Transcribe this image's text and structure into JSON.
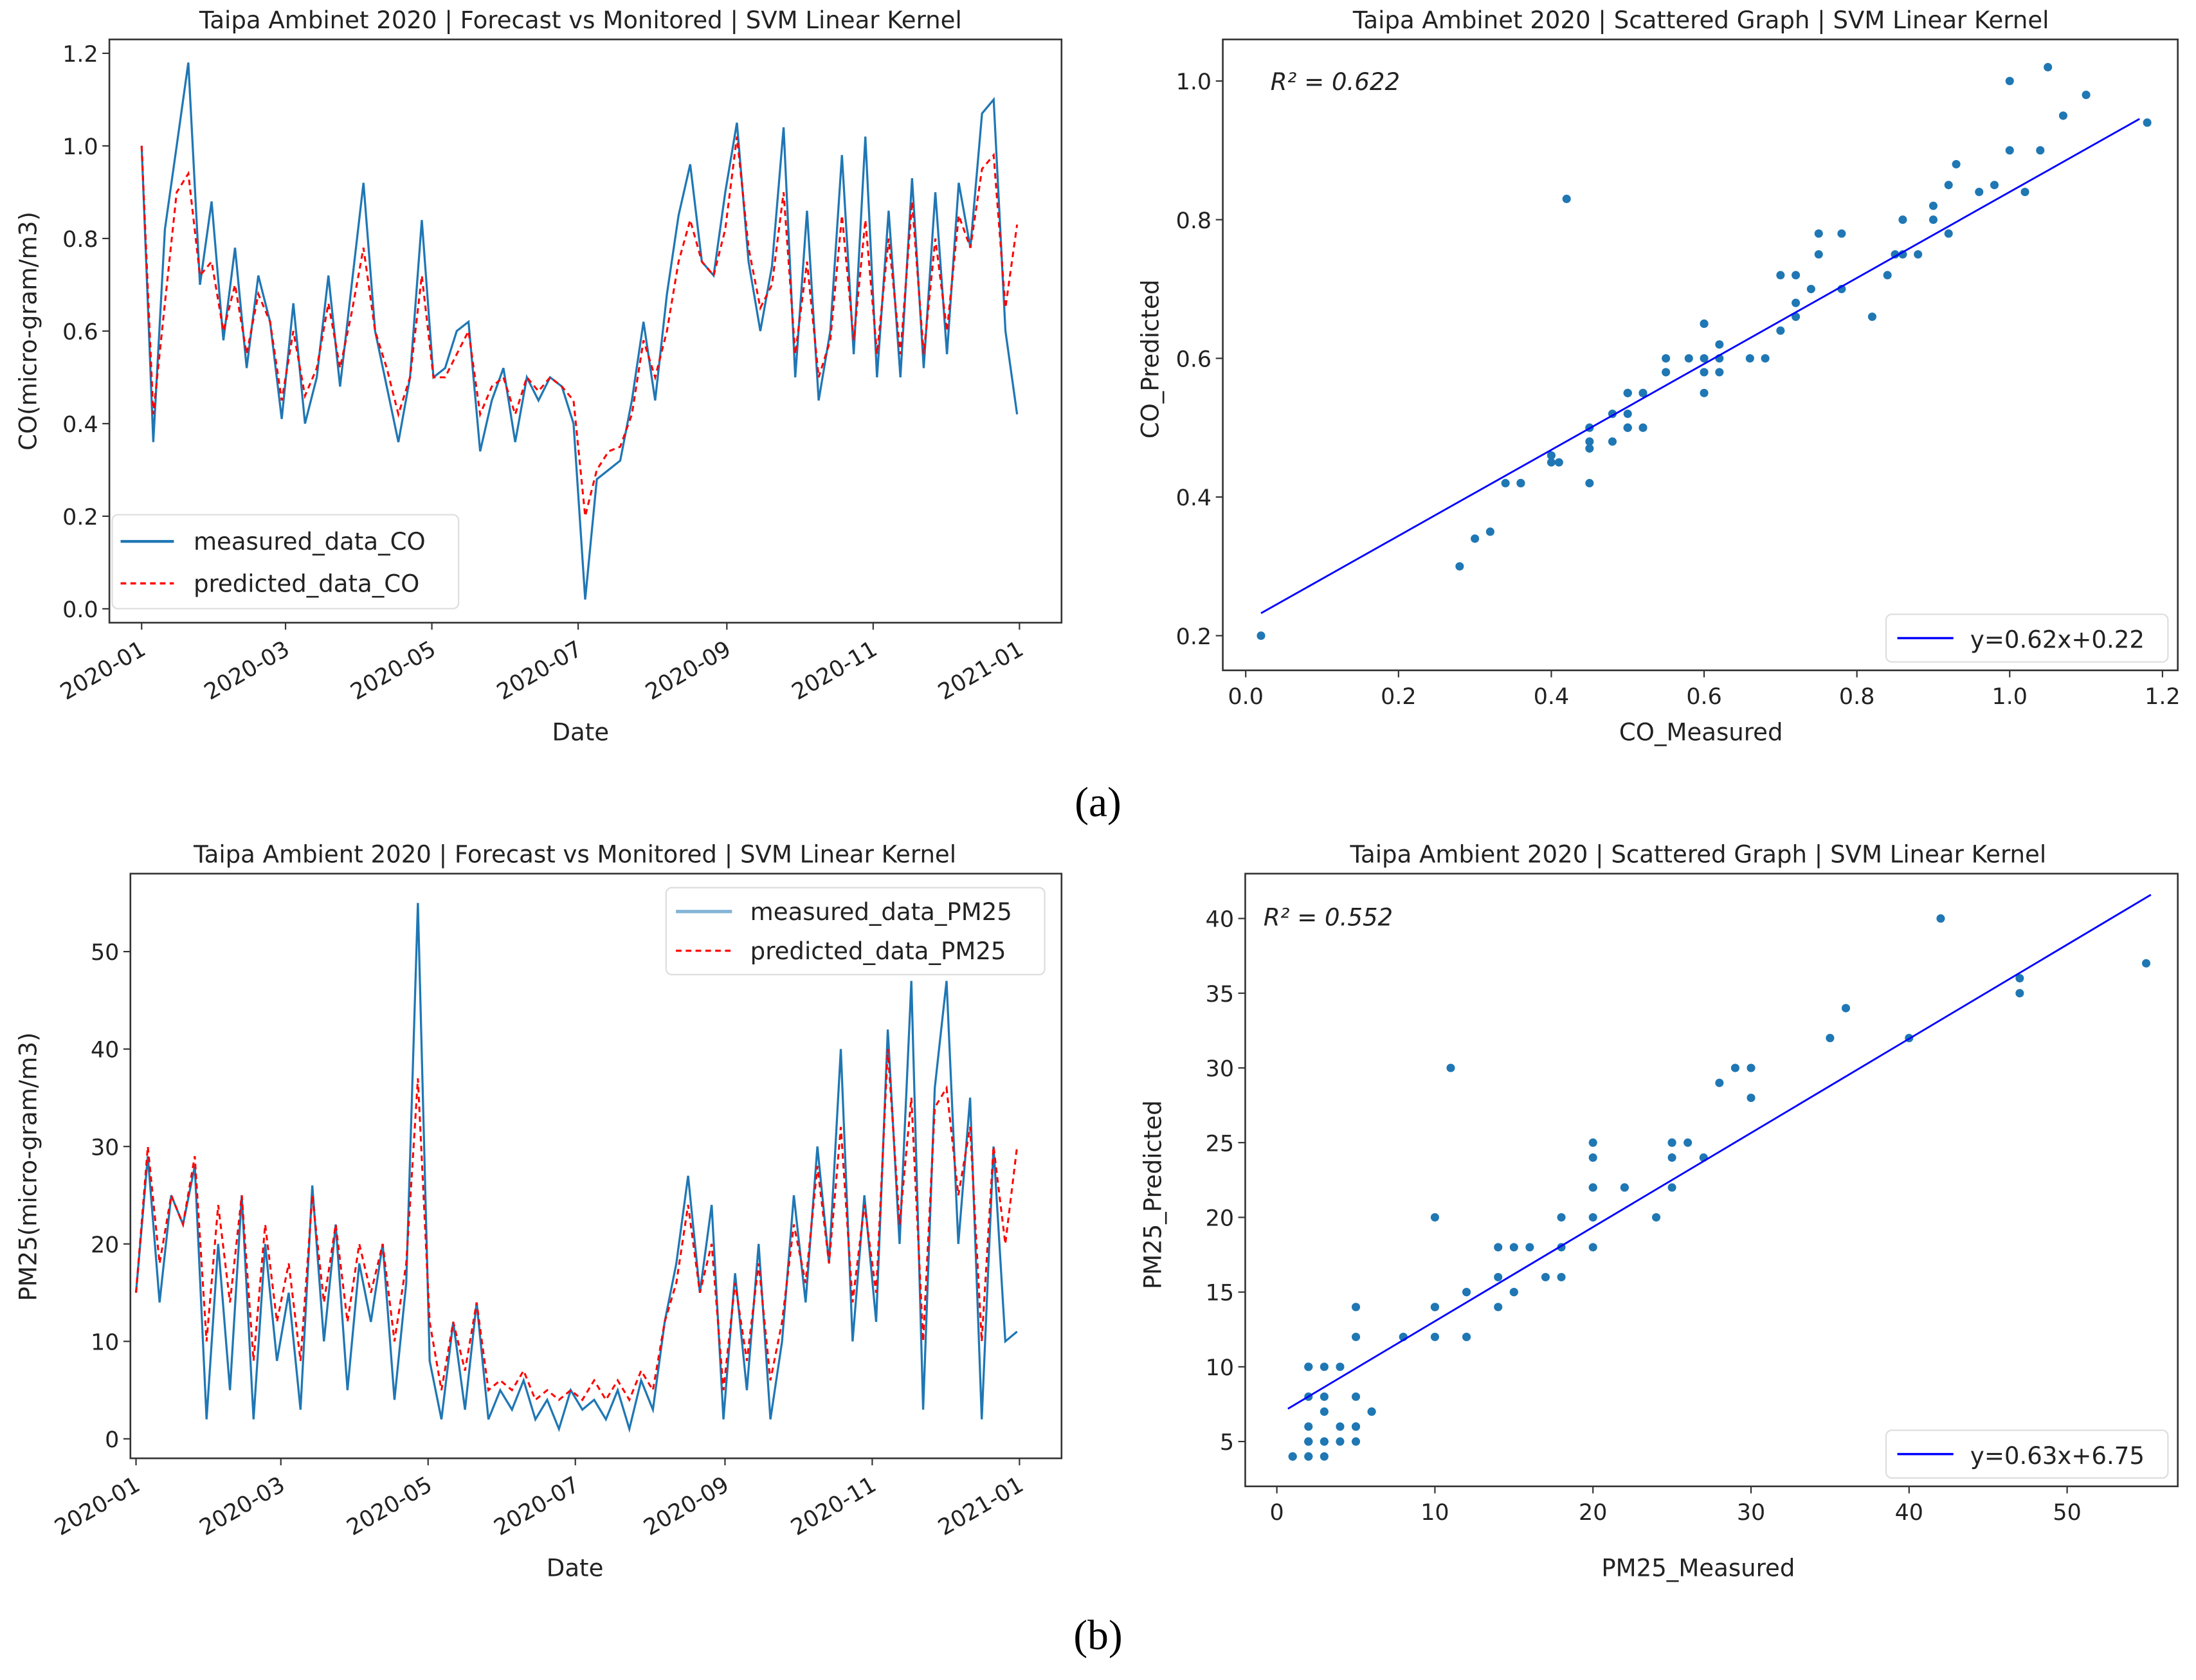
{
  "panel_labels": {
    "a": "(a)",
    "b": "(b)"
  },
  "chart_data": [
    {
      "id": "co_timeseries",
      "type": "line",
      "title": "Taipa Ambinet 2020 | Forecast vs Monitored | SVM Linear Kernel",
      "xlabel": "Date",
      "ylabel": "CO(micro-gram/m3)",
      "start": "2020-01-01",
      "end": "2020-12-31",
      "ylim": [
        -0.03,
        1.23
      ],
      "yticks": [
        0.0,
        0.2,
        0.4,
        0.6,
        0.8,
        1.0,
        1.2
      ],
      "ytick_labels": [
        "0.0",
        "0.2",
        "0.4",
        "0.6",
        "0.8",
        "1.0",
        "1.2"
      ],
      "xtick_labels": [
        "2020-01",
        "2020-03",
        "2020-05",
        "2020-07",
        "2020-09",
        "2020-11",
        "2021-01"
      ],
      "legend": "lower-left",
      "series": [
        {
          "name": "measured_data_CO",
          "color": "#1f77b4",
          "style": "solid",
          "values": [
            1.0,
            0.36,
            0.82,
            1.0,
            1.18,
            0.7,
            0.88,
            0.58,
            0.78,
            0.52,
            0.72,
            0.62,
            0.41,
            0.66,
            0.4,
            0.5,
            0.72,
            0.48,
            0.7,
            0.92,
            0.6,
            0.48,
            0.36,
            0.5,
            0.84,
            0.5,
            0.52,
            0.6,
            0.62,
            0.34,
            0.45,
            0.52,
            0.36,
            0.5,
            0.45,
            0.5,
            0.48,
            0.4,
            0.02,
            0.28,
            0.3,
            0.32,
            0.45,
            0.62,
            0.45,
            0.68,
            0.85,
            0.96,
            0.75,
            0.72,
            0.9,
            1.05,
            0.75,
            0.6,
            0.74,
            1.04,
            0.5,
            0.86,
            0.45,
            0.6,
            0.98,
            0.55,
            1.02,
            0.5,
            0.86,
            0.5,
            0.93,
            0.52,
            0.9,
            0.55,
            0.92,
            0.78,
            1.07,
            1.1,
            0.6,
            0.42
          ]
        },
        {
          "name": "predicted_data_CO",
          "color": "#ff0000",
          "style": "dashed",
          "values": [
            1.0,
            0.42,
            0.66,
            0.9,
            0.94,
            0.72,
            0.75,
            0.6,
            0.7,
            0.55,
            0.68,
            0.62,
            0.45,
            0.6,
            0.46,
            0.52,
            0.66,
            0.52,
            0.64,
            0.78,
            0.6,
            0.52,
            0.42,
            0.5,
            0.72,
            0.5,
            0.5,
            0.55,
            0.6,
            0.42,
            0.48,
            0.5,
            0.42,
            0.5,
            0.47,
            0.5,
            0.48,
            0.45,
            0.2,
            0.3,
            0.34,
            0.35,
            0.42,
            0.58,
            0.5,
            0.6,
            0.75,
            0.84,
            0.75,
            0.72,
            0.82,
            1.02,
            0.78,
            0.65,
            0.7,
            0.9,
            0.55,
            0.75,
            0.5,
            0.58,
            0.85,
            0.58,
            0.84,
            0.55,
            0.8,
            0.55,
            0.88,
            0.55,
            0.8,
            0.6,
            0.85,
            0.78,
            0.95,
            0.98,
            0.65,
            0.83
          ]
        }
      ]
    },
    {
      "id": "co_scatter",
      "type": "scatter",
      "title": "Taipa Ambinet 2020 | Scattered Graph | SVM Linear Kernel",
      "xlabel": "CO_Measured",
      "ylabel": "CO_Predicted",
      "xlim": [
        -0.03,
        1.22
      ],
      "ylim": [
        0.15,
        1.06
      ],
      "xticks": [
        0.0,
        0.2,
        0.4,
        0.6,
        0.8,
        1.0,
        1.2
      ],
      "xtick_labels": [
        "0.0",
        "0.2",
        "0.4",
        "0.6",
        "0.8",
        "1.0",
        "1.2"
      ],
      "yticks": [
        0.2,
        0.4,
        0.6,
        0.8,
        1.0
      ],
      "ytick_labels": [
        "0.2",
        "0.4",
        "0.6",
        "0.8",
        "1.0"
      ],
      "annotation": "R² = 0.622",
      "fit": {
        "slope": 0.62,
        "intercept": 0.22,
        "x_range": [
          0.02,
          1.17
        ],
        "label": "y=0.62x+0.22",
        "color": "#0000ff"
      },
      "point_color": "#1f77b4",
      "legend": "lower-right",
      "points_from": "co_timeseries"
    },
    {
      "id": "pm25_timeseries",
      "type": "line",
      "title": "Taipa Ambient 2020 | Forecast vs Monitored | SVM Linear Kernel",
      "xlabel": "Date",
      "ylabel": "PM25(micro-gram/m3)",
      "start": "2020-01-01",
      "end": "2020-12-31",
      "ylim": [
        -2,
        58
      ],
      "yticks": [
        0,
        10,
        20,
        30,
        40,
        50
      ],
      "ytick_labels": [
        "0",
        "10",
        "20",
        "30",
        "40",
        "50"
      ],
      "xtick_labels": [
        "2020-01",
        "2020-03",
        "2020-05",
        "2020-07",
        "2020-09",
        "2020-11",
        "2021-01"
      ],
      "legend": "upper-right",
      "series": [
        {
          "name": "measured_data_PM25",
          "color": "#1f77b4",
          "style": "solid",
          "values": [
            15,
            29,
            14,
            25,
            22,
            28,
            2,
            20,
            5,
            25,
            2,
            20,
            8,
            15,
            3,
            26,
            10,
            22,
            5,
            18,
            12,
            20,
            4,
            16,
            55,
            8,
            2,
            12,
            3,
            14,
            2,
            5,
            3,
            6,
            2,
            4,
            1,
            5,
            3,
            4,
            2,
            5,
            1,
            6,
            3,
            12,
            18,
            27,
            15,
            24,
            2,
            17,
            5,
            20,
            2,
            10,
            25,
            14,
            30,
            18,
            40,
            10,
            25,
            12,
            42,
            20,
            47,
            3,
            36,
            47,
            20,
            35,
            2,
            30,
            10,
            11
          ]
        },
        {
          "name": "predicted_data_PM25",
          "color": "#ff0000",
          "style": "dashed",
          "values": [
            15,
            30,
            18,
            25,
            22,
            29,
            10,
            24,
            14,
            25,
            8,
            22,
            12,
            18,
            8,
            25,
            14,
            22,
            12,
            20,
            15,
            20,
            10,
            18,
            37,
            12,
            5,
            12,
            7,
            14,
            5,
            6,
            5,
            7,
            4,
            5,
            4,
            5,
            4,
            6,
            4,
            6,
            4,
            7,
            5,
            12,
            16,
            24,
            15,
            20,
            5,
            16,
            8,
            18,
            6,
            12,
            22,
            16,
            28,
            18,
            32,
            14,
            24,
            15,
            40,
            22,
            35,
            10,
            34,
            36,
            25,
            32,
            10,
            30,
            20,
            30
          ]
        }
      ]
    },
    {
      "id": "pm25_scatter",
      "type": "scatter",
      "title": "Taipa Ambient 2020 | Scattered Graph | SVM Linear Kernel",
      "xlabel": "PM25_Measured",
      "ylabel": "PM25_Predicted",
      "xlim": [
        -2,
        57
      ],
      "ylim": [
        2,
        43
      ],
      "xticks": [
        0,
        10,
        20,
        30,
        40,
        50
      ],
      "xtick_labels": [
        "0",
        "10",
        "20",
        "30",
        "40",
        "50"
      ],
      "yticks": [
        5,
        10,
        15,
        20,
        25,
        30,
        35,
        40
      ],
      "ytick_labels": [
        "5",
        "10",
        "15",
        "20",
        "25",
        "30",
        "35",
        "40"
      ],
      "annotation": "R² = 0.552",
      "fit": {
        "slope": 0.63,
        "intercept": 6.75,
        "x_range": [
          0.7,
          55.3
        ],
        "label": "y=0.63x+6.75",
        "color": "#0000ff"
      },
      "point_color": "#1f77b4",
      "legend": "lower-right",
      "points_from": "pm25_timeseries"
    }
  ]
}
